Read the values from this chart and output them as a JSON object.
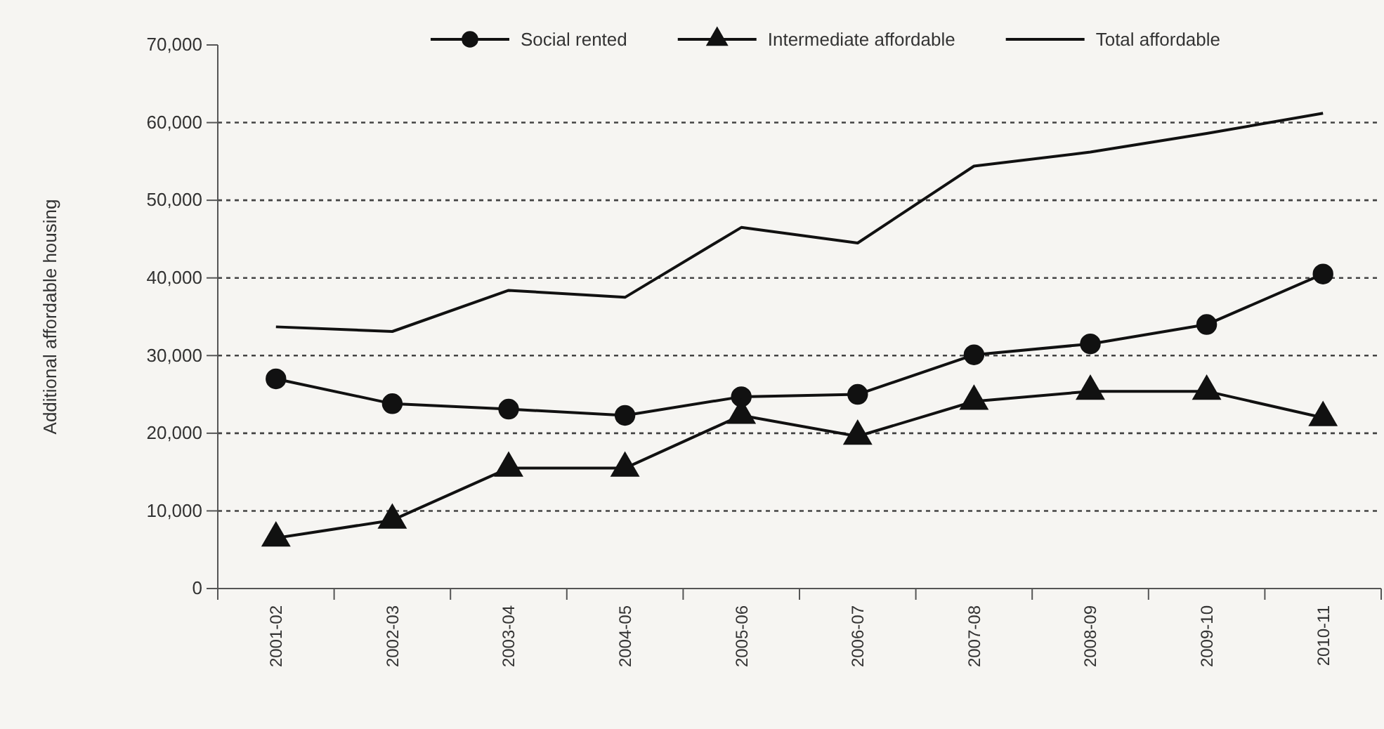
{
  "chart_data": {
    "type": "line",
    "ylabel": "Additional affordable housing",
    "categories": [
      "2001-02",
      "2002-03",
      "2003-04",
      "2004-05",
      "2005-06",
      "2006-07",
      "2007-08",
      "2008-09",
      "2009-10",
      "2010-11"
    ],
    "series": [
      {
        "name": "Social rented",
        "color": "#111111",
        "marker": "circle",
        "values": [
          27000,
          23800,
          23100,
          22300,
          24700,
          25000,
          30100,
          31500,
          34000,
          40500
        ]
      },
      {
        "name": "Intermediate affordable",
        "color": "#111111",
        "marker": "triangle",
        "values": [
          6500,
          8800,
          15500,
          15500,
          22300,
          19600,
          24100,
          25400,
          25400,
          22000
        ]
      },
      {
        "name": "Total affordable",
        "color": "#111111",
        "marker": "none",
        "values": [
          33700,
          33100,
          38400,
          37500,
          46500,
          44500,
          54400,
          56200,
          58600,
          61200
        ]
      }
    ],
    "ylim": [
      0,
      70000
    ],
    "yticks": [
      {
        "value": 0,
        "label": "0"
      },
      {
        "value": 10000,
        "label": "10,000"
      },
      {
        "value": 20000,
        "label": "20,000"
      },
      {
        "value": 30000,
        "label": "30,000"
      },
      {
        "value": 40000,
        "label": "40,000"
      },
      {
        "value": 50000,
        "label": "50,000"
      },
      {
        "value": 60000,
        "label": "60,000"
      },
      {
        "value": 70000,
        "label": "70,000"
      }
    ],
    "grid": "y",
    "legend": "top"
  }
}
